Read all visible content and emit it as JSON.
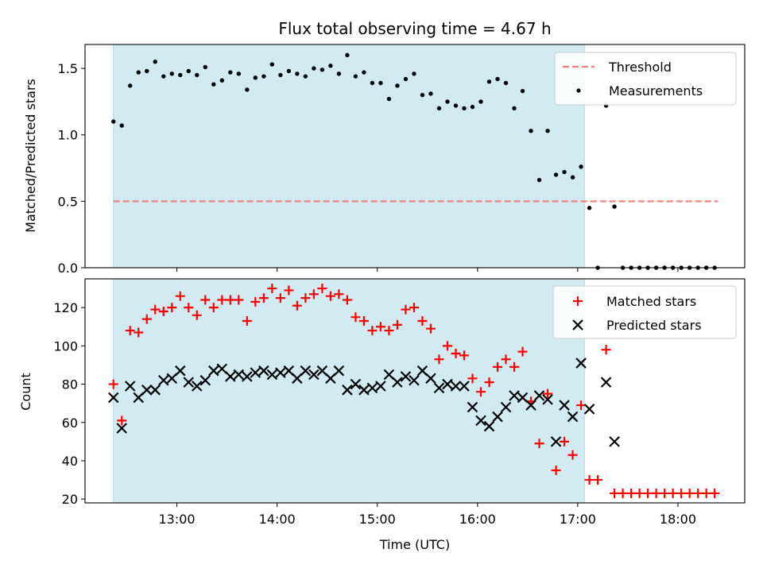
{
  "chart_data": [
    {
      "type": "scatter",
      "title": "Flux total observing time = 4.67 h",
      "ylabel": "Matched/Predicted stars",
      "ylim": [
        0,
        1.68
      ],
      "yticks": [
        "0.0",
        "0.5",
        "1.0",
        "1.5"
      ],
      "shaded_span": [
        "12:22",
        "17:04"
      ],
      "shaded_color": "#add8e6",
      "threshold": {
        "name": "Threshold",
        "value": 0.5,
        "x_range": [
          "12:22",
          "18:24"
        ],
        "color": "#f08080"
      },
      "series": [
        {
          "name": "Measurements",
          "color": "#000000",
          "marker": "dot",
          "points": [
            [
              "12:22",
              1.1
            ],
            [
              "12:27",
              1.07
            ],
            [
              "12:32",
              1.37
            ],
            [
              "12:37",
              1.47
            ],
            [
              "12:42",
              1.48
            ],
            [
              "12:47",
              1.55
            ],
            [
              "12:52",
              1.44
            ],
            [
              "12:57",
              1.46
            ],
            [
              "13:02",
              1.45
            ],
            [
              "13:07",
              1.48
            ],
            [
              "13:12",
              1.45
            ],
            [
              "13:17",
              1.51
            ],
            [
              "13:22",
              1.38
            ],
            [
              "13:27",
              1.41
            ],
            [
              "13:32",
              1.47
            ],
            [
              "13:37",
              1.46
            ],
            [
              "13:42",
              1.34
            ],
            [
              "13:47",
              1.43
            ],
            [
              "13:52",
              1.44
            ],
            [
              "13:57",
              1.53
            ],
            [
              "14:02",
              1.45
            ],
            [
              "14:07",
              1.48
            ],
            [
              "14:12",
              1.46
            ],
            [
              "14:17",
              1.44
            ],
            [
              "14:22",
              1.5
            ],
            [
              "14:27",
              1.49
            ],
            [
              "14:32",
              1.52
            ],
            [
              "14:37",
              1.46
            ],
            [
              "14:42",
              1.6
            ],
            [
              "14:47",
              1.44
            ],
            [
              "14:52",
              1.47
            ],
            [
              "14:57",
              1.39
            ],
            [
              "15:02",
              1.39
            ],
            [
              "15:07",
              1.27
            ],
            [
              "15:12",
              1.37
            ],
            [
              "15:17",
              1.42
            ],
            [
              "15:22",
              1.46
            ],
            [
              "15:27",
              1.3
            ],
            [
              "15:32",
              1.31
            ],
            [
              "15:37",
              1.2
            ],
            [
              "15:42",
              1.25
            ],
            [
              "15:47",
              1.22
            ],
            [
              "15:52",
              1.2
            ],
            [
              "15:57",
              1.21
            ],
            [
              "16:02",
              1.25
            ],
            [
              "16:07",
              1.4
            ],
            [
              "16:12",
              1.42
            ],
            [
              "16:17",
              1.39
            ],
            [
              "16:22",
              1.2
            ],
            [
              "16:27",
              1.33
            ],
            [
              "16:32",
              1.03
            ],
            [
              "16:37",
              0.66
            ],
            [
              "16:42",
              1.03
            ],
            [
              "16:47",
              0.7
            ],
            [
              "16:52",
              0.72
            ],
            [
              "16:57",
              0.68
            ],
            [
              "17:02",
              0.76
            ],
            [
              "17:07",
              0.45
            ],
            [
              "17:12",
              0.0
            ],
            [
              "17:17",
              1.22
            ],
            [
              "17:22",
              0.46
            ],
            [
              "17:27",
              0.0
            ],
            [
              "17:32",
              0.0
            ],
            [
              "17:37",
              0.0
            ],
            [
              "17:42",
              0.0
            ],
            [
              "17:47",
              0.0
            ],
            [
              "17:52",
              0.0
            ],
            [
              "17:57",
              0.0
            ],
            [
              "18:02",
              0.0
            ],
            [
              "18:07",
              0.0
            ],
            [
              "18:12",
              0.0
            ],
            [
              "18:17",
              0.0
            ],
            [
              "18:22",
              0.0
            ]
          ]
        }
      ],
      "legend": [
        "Threshold",
        "Measurements"
      ],
      "legend_position": "top-right"
    },
    {
      "type": "scatter",
      "xlabel": "Time (UTC)",
      "ylabel": "Count",
      "ylim": [
        18,
        135
      ],
      "yticks": [
        "20",
        "40",
        "60",
        "80",
        "100",
        "120"
      ],
      "xticks": [
        "13:00",
        "14:00",
        "15:00",
        "16:00",
        "17:00",
        "18:00"
      ],
      "xlim": [
        "12:05",
        "18:40"
      ],
      "shaded_span": [
        "12:22",
        "17:04"
      ],
      "shaded_color": "#add8e6",
      "series": [
        {
          "name": "Matched stars",
          "color": "#ff0000",
          "marker": "plus",
          "points": [
            [
              "12:22",
              80
            ],
            [
              "12:27",
              61
            ],
            [
              "12:32",
              108
            ],
            [
              "12:37",
              107
            ],
            [
              "12:42",
              114
            ],
            [
              "12:47",
              119
            ],
            [
              "12:52",
              118
            ],
            [
              "12:57",
              120
            ],
            [
              "13:02",
              126
            ],
            [
              "13:07",
              120
            ],
            [
              "13:12",
              116
            ],
            [
              "13:17",
              124
            ],
            [
              "13:22",
              120
            ],
            [
              "13:27",
              124
            ],
            [
              "13:32",
              124
            ],
            [
              "13:37",
              124
            ],
            [
              "13:42",
              113
            ],
            [
              "13:47",
              123
            ],
            [
              "13:52",
              125
            ],
            [
              "13:57",
              130
            ],
            [
              "14:02",
              125
            ],
            [
              "14:07",
              129
            ],
            [
              "14:12",
              121
            ],
            [
              "14:17",
              125
            ],
            [
              "14:22",
              127
            ],
            [
              "14:27",
              130
            ],
            [
              "14:32",
              126
            ],
            [
              "14:37",
              127
            ],
            [
              "14:42",
              124
            ],
            [
              "14:47",
              115
            ],
            [
              "14:52",
              113
            ],
            [
              "14:57",
              108
            ],
            [
              "15:02",
              110
            ],
            [
              "15:07",
              108
            ],
            [
              "15:12",
              111
            ],
            [
              "15:17",
              119
            ],
            [
              "15:22",
              120
            ],
            [
              "15:27",
              113
            ],
            [
              "15:32",
              109
            ],
            [
              "15:37",
              93
            ],
            [
              "15:42",
              100
            ],
            [
              "15:47",
              96
            ],
            [
              "15:52",
              95
            ],
            [
              "15:57",
              83
            ],
            [
              "16:02",
              76
            ],
            [
              "16:07",
              81
            ],
            [
              "16:12",
              89
            ],
            [
              "16:17",
              93
            ],
            [
              "16:22",
              89
            ],
            [
              "16:27",
              97
            ],
            [
              "16:32",
              71
            ],
            [
              "16:37",
              49
            ],
            [
              "16:42",
              75
            ],
            [
              "16:47",
              35
            ],
            [
              "16:52",
              50
            ],
            [
              "16:57",
              43
            ],
            [
              "17:02",
              69
            ],
            [
              "17:07",
              30
            ],
            [
              "17:12",
              30
            ],
            [
              "17:17",
              98
            ],
            [
              "17:22",
              23
            ],
            [
              "17:27",
              23
            ],
            [
              "17:32",
              23
            ],
            [
              "17:37",
              23
            ],
            [
              "17:42",
              23
            ],
            [
              "17:47",
              23
            ],
            [
              "17:52",
              23
            ],
            [
              "17:57",
              23
            ],
            [
              "18:02",
              23
            ],
            [
              "18:07",
              23
            ],
            [
              "18:12",
              23
            ],
            [
              "18:17",
              23
            ],
            [
              "18:22",
              23
            ]
          ]
        },
        {
          "name": "Predicted stars",
          "color": "#000000",
          "marker": "x",
          "points": [
            [
              "12:22",
              73
            ],
            [
              "12:27",
              57
            ],
            [
              "12:32",
              79
            ],
            [
              "12:37",
              73
            ],
            [
              "12:42",
              77
            ],
            [
              "12:47",
              77
            ],
            [
              "12:52",
              82
            ],
            [
              "12:57",
              83
            ],
            [
              "13:02",
              87
            ],
            [
              "13:07",
              81
            ],
            [
              "13:12",
              79
            ],
            [
              "13:17",
              82
            ],
            [
              "13:22",
              87
            ],
            [
              "13:27",
              88
            ],
            [
              "13:32",
              84
            ],
            [
              "13:37",
              85
            ],
            [
              "13:42",
              84
            ],
            [
              "13:47",
              86
            ],
            [
              "13:52",
              87
            ],
            [
              "13:57",
              85
            ],
            [
              "14:02",
              86
            ],
            [
              "14:07",
              87
            ],
            [
              "14:12",
              83
            ],
            [
              "14:17",
              87
            ],
            [
              "14:22",
              85
            ],
            [
              "14:27",
              87
            ],
            [
              "14:32",
              83
            ],
            [
              "14:37",
              87
            ],
            [
              "14:42",
              77
            ],
            [
              "14:47",
              80
            ],
            [
              "14:52",
              77
            ],
            [
              "14:57",
              78
            ],
            [
              "15:02",
              79
            ],
            [
              "15:07",
              85
            ],
            [
              "15:12",
              81
            ],
            [
              "15:17",
              84
            ],
            [
              "15:22",
              82
            ],
            [
              "15:27",
              87
            ],
            [
              "15:32",
              83
            ],
            [
              "15:37",
              78
            ],
            [
              "15:42",
              80
            ],
            [
              "15:47",
              79
            ],
            [
              "15:52",
              79
            ],
            [
              "15:57",
              68
            ],
            [
              "16:02",
              61
            ],
            [
              "16:07",
              58
            ],
            [
              "16:12",
              63
            ],
            [
              "16:17",
              68
            ],
            [
              "16:22",
              74
            ],
            [
              "16:27",
              73
            ],
            [
              "16:32",
              69
            ],
            [
              "16:37",
              74
            ],
            [
              "16:42",
              72
            ],
            [
              "16:47",
              50
            ],
            [
              "16:52",
              69
            ],
            [
              "16:57",
              63
            ],
            [
              "17:02",
              91
            ],
            [
              "17:07",
              67
            ],
            [
              "17:17",
              81
            ],
            [
              "17:22",
              50
            ]
          ]
        }
      ],
      "legend": [
        "Matched stars",
        "Predicted stars"
      ],
      "legend_position": "top-right"
    }
  ]
}
